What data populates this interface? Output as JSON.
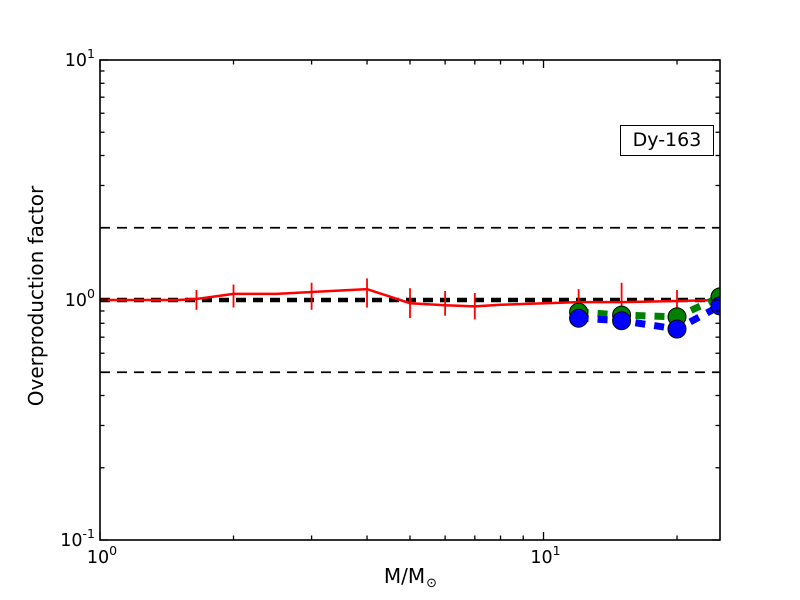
{
  "figure": {
    "ylabel": "Overproduction factor",
    "xlabel_main": "M/M",
    "xlabel_sub": "⊙",
    "annotation": "Dy-163",
    "background": "#ffffff",
    "axis_color": "#000000"
  },
  "chart_data": {
    "type": "line",
    "x_scale": "log",
    "y_scale": "log",
    "xlim": [
      1,
      25
    ],
    "ylim": [
      0.1,
      10
    ],
    "grid": false,
    "legend": "none",
    "x_major_ticks": [
      {
        "value": 1,
        "label_base": "10",
        "label_exp": "0"
      },
      {
        "value": 10,
        "label_base": "10",
        "label_exp": "1"
      }
    ],
    "x_minor_ticks": [
      2,
      3,
      4,
      5,
      6,
      7,
      8,
      9,
      20
    ],
    "y_major_ticks": [
      {
        "value": 0.1,
        "label_base": "10",
        "label_exp": "-1"
      },
      {
        "value": 1,
        "label_base": "10",
        "label_exp": "0"
      },
      {
        "value": 10,
        "label_base": "10",
        "label_exp": "1"
      }
    ],
    "y_minor_ticks": [
      0.2,
      0.3,
      0.4,
      0.5,
      0.6,
      0.7,
      0.8,
      0.9,
      2,
      3,
      4,
      5,
      6,
      7,
      8,
      9
    ],
    "reference_lines": [
      {
        "y": 2.0,
        "color": "#000000",
        "width": 1.8,
        "dash": "10 7"
      },
      {
        "y": 1.0,
        "color": "#000000",
        "width": 4.4,
        "dash": "10 7"
      },
      {
        "y": 0.5,
        "color": "#000000",
        "width": 1.8,
        "dash": "10 7"
      }
    ],
    "series": [
      {
        "name": "red-solid-series",
        "color": "#ff0000",
        "width": 2.5,
        "dash": null,
        "marker": null,
        "x": [
          1.0,
          1.25,
          1.5,
          1.65,
          2.0,
          2.5,
          3.0,
          4.0,
          5.0,
          6.0,
          7.0,
          8.0,
          12.0,
          15.0,
          20.0,
          25.0
        ],
        "y": [
          1.0,
          1.0,
          1.0,
          1.01,
          1.06,
          1.06,
          1.08,
          1.11,
          0.97,
          0.95,
          0.94,
          0.955,
          0.98,
          0.98,
          0.99,
          1.0
        ],
        "err_lo": [
          null,
          null,
          null,
          0.91,
          0.93,
          null,
          0.91,
          0.93,
          0.84,
          0.86,
          0.83,
          null,
          0.88,
          0.84,
          0.87,
          null
        ],
        "err_hi": [
          null,
          null,
          null,
          1.1,
          1.16,
          null,
          1.18,
          1.23,
          1.12,
          1.09,
          1.07,
          null,
          1.11,
          1.18,
          1.1,
          null
        ]
      },
      {
        "name": "green-dashed-series",
        "color": "#008000",
        "width": 7,
        "dash": "10 9",
        "marker": "circle",
        "marker_size": 9,
        "x": [
          12,
          15,
          20,
          25
        ],
        "y": [
          0.89,
          0.865,
          0.85,
          1.03
        ],
        "err_lo": null,
        "err_hi": null
      },
      {
        "name": "blue-dashed-series",
        "color": "#0000ff",
        "width": 7,
        "dash": "10 9",
        "marker": "circle",
        "marker_size": 9,
        "x": [
          12,
          15,
          20,
          25
        ],
        "y": [
          0.84,
          0.82,
          0.757,
          0.945
        ],
        "err_lo": null,
        "err_hi": null
      }
    ]
  }
}
